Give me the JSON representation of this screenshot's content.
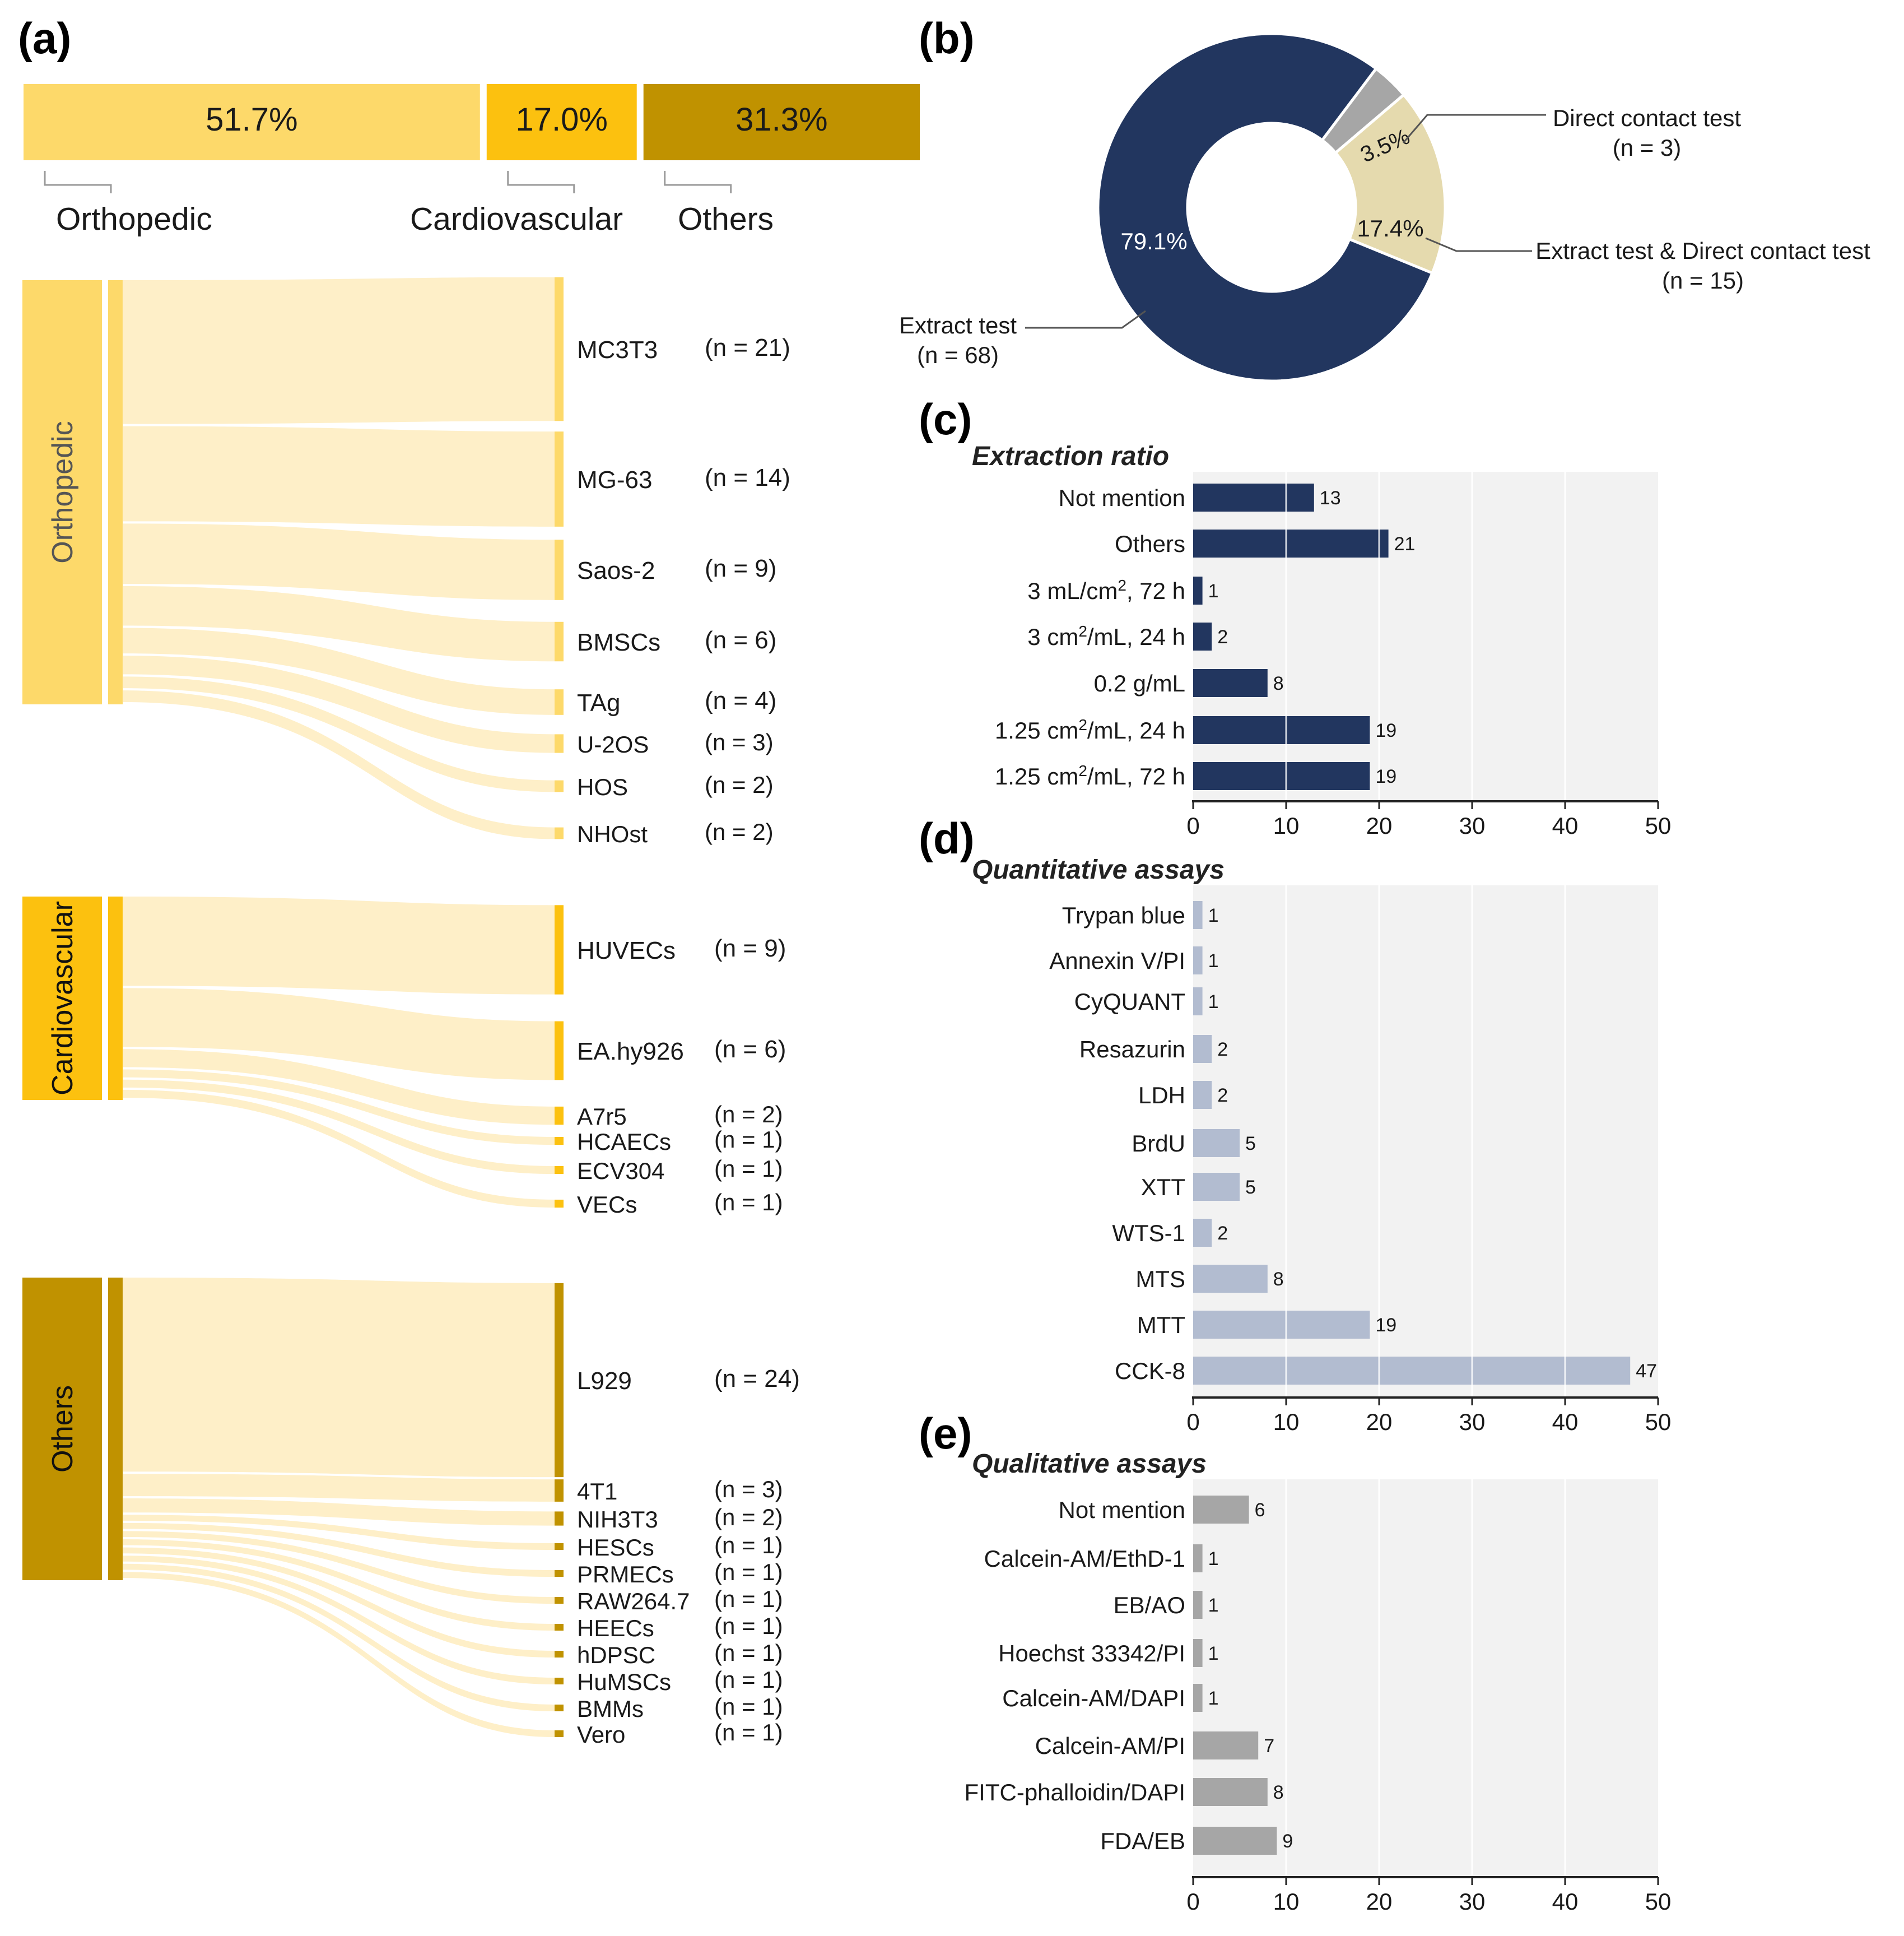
{
  "panel_labels": {
    "a": "(a)",
    "b": "(b)",
    "c": "(c)",
    "d": "(d)",
    "e": "(e)"
  },
  "colors": {
    "orthopedic": "#FDD96A",
    "cardiovascular": "#FCC10F",
    "others": "#C09200",
    "flow": "#FEEFC8",
    "navy": "#22365F",
    "gray": "#A6A6A6",
    "beige": "#E5DAAE",
    "quant": "#B2BCD0",
    "plot_bg": "#F2F2F2"
  },
  "chart_data": [
    {
      "id": "a-stacked",
      "type": "bar",
      "categories": [
        "Orthopedic",
        "Cardiovascular",
        "Others"
      ],
      "values": [
        51.7,
        17.0,
        31.3
      ],
      "labels": [
        "51.7%",
        "17.0%",
        "31.3%"
      ]
    },
    {
      "id": "a-sankey",
      "type": "sankey",
      "groups": [
        {
          "name": "Orthopedic",
          "targets": [
            {
              "label": "MC3T3",
              "n_text": "(n = 21)",
              "value": 21
            },
            {
              "label": "MG-63",
              "n_text": "(n = 14)",
              "value": 14
            },
            {
              "label": "Saos-2",
              "n_text": "(n = 9)",
              "value": 9
            },
            {
              "label": "BMSCs",
              "n_text": "(n = 6)",
              "value": 6
            },
            {
              "label": "TAg",
              "n_text": "(n = 4)",
              "value": 4
            },
            {
              "label": "U-2OS",
              "n_text": "(n = 3)",
              "value": 3
            },
            {
              "label": "HOS",
              "n_text": "(n = 2)",
              "value": 2
            },
            {
              "label": "NHOst",
              "n_text": "(n = 2)",
              "value": 2
            }
          ]
        },
        {
          "name": "Cardiovascular",
          "targets": [
            {
              "label": "HUVECs",
              "n_text": "(n = 9)",
              "value": 9
            },
            {
              "label": "EA.hy926",
              "n_text": "(n = 6)",
              "value": 6
            },
            {
              "label": "A7r5",
              "n_text": "(n = 2)",
              "value": 2
            },
            {
              "label": "HCAECs",
              "n_text": "(n = 1)",
              "value": 1
            },
            {
              "label": "ECV304",
              "n_text": "(n = 1)",
              "value": 1
            },
            {
              "label": "VECs",
              "n_text": "(n = 1)",
              "value": 1
            }
          ]
        },
        {
          "name": "Others",
          "targets": [
            {
              "label": "L929",
              "n_text": "(n = 24)",
              "value": 24
            },
            {
              "label": "4T1",
              "n_text": "(n = 3)",
              "value": 3
            },
            {
              "label": "NIH3T3",
              "n_text": "(n = 2)",
              "value": 2
            },
            {
              "label": "HESCs",
              "n_text": "(n = 1)",
              "value": 1
            },
            {
              "label": "PRMECs",
              "n_text": "(n = 1)",
              "value": 1
            },
            {
              "label": "RAW264.7",
              "n_text": "(n = 1)",
              "value": 1
            },
            {
              "label": "HEECs",
              "n_text": "(n = 1)",
              "value": 1
            },
            {
              "label": "hDPSC",
              "n_text": "(n = 1)",
              "value": 1
            },
            {
              "label": "HuMSCs",
              "n_text": "(n = 1)",
              "value": 1
            },
            {
              "label": "BMMs",
              "n_text": "(n = 1)",
              "value": 1
            },
            {
              "label": "Vero",
              "n_text": "(n = 1)",
              "value": 1
            }
          ]
        }
      ]
    },
    {
      "id": "b-donut",
      "type": "pie",
      "slices": [
        {
          "name": "Extract test",
          "n_text": "(n = 68)",
          "value": 79.1,
          "label": "79.1%"
        },
        {
          "name": "Direct contact test",
          "n_text": "(n = 3)",
          "value": 3.5,
          "label": "3.5%"
        },
        {
          "name": "Extract test & Direct contact test",
          "n_text": "(n = 15)",
          "value": 17.4,
          "label": "17.4%"
        }
      ]
    },
    {
      "id": "c-extraction",
      "type": "bar",
      "orientation": "horizontal",
      "title": "Extraction ratio",
      "categories": [
        {
          "pre": "Not mention"
        },
        {
          "pre": "Others"
        },
        {
          "pre": "3 mL/cm",
          "sup": "2",
          "post": ", 72 h"
        },
        {
          "pre": "3 cm",
          "sup": "2",
          "post": "/mL, 24 h"
        },
        {
          "pre": "0.2 g/mL"
        },
        {
          "pre": "1.25 cm",
          "sup": "2",
          "post": "/mL, 24 h"
        },
        {
          "pre": "1.25 cm",
          "sup": "2",
          "post": "/mL, 72 h"
        }
      ],
      "values": [
        13,
        21,
        1,
        2,
        8,
        19,
        19
      ],
      "xlim": [
        0,
        50
      ],
      "xticks": [
        0,
        10,
        20,
        30,
        40,
        50
      ],
      "grid": true
    },
    {
      "id": "d-quantitative",
      "type": "bar",
      "orientation": "horizontal",
      "title": "Quantitative assays",
      "categories": [
        {
          "pre": "Trypan blue"
        },
        {
          "pre": "Annexin V/PI"
        },
        {
          "pre": "CyQUANT"
        },
        {
          "pre": "Resazurin"
        },
        {
          "pre": "LDH"
        },
        {
          "pre": "BrdU"
        },
        {
          "pre": "XTT"
        },
        {
          "pre": "WTS-1"
        },
        {
          "pre": "MTS"
        },
        {
          "pre": "MTT"
        },
        {
          "pre": "CCK-8"
        }
      ],
      "values": [
        1,
        1,
        1,
        2,
        2,
        5,
        5,
        2,
        8,
        19,
        47
      ],
      "xlim": [
        0,
        50
      ],
      "xticks": [
        0,
        10,
        20,
        30,
        40,
        50
      ],
      "grid": true
    },
    {
      "id": "e-qualitative",
      "type": "bar",
      "orientation": "horizontal",
      "title": "Qualitative assays",
      "categories": [
        {
          "pre": "Not mention"
        },
        {
          "pre": "Calcein-AM/EthD-1"
        },
        {
          "pre": "EB/AO"
        },
        {
          "pre": "Hoechst 33342/PI"
        },
        {
          "pre": "Calcein-AM/DAPI"
        },
        {
          "pre": "Calcein-AM/PI"
        },
        {
          "pre": "FITC-phalloidin/DAPI"
        },
        {
          "pre": "FDA/EB"
        }
      ],
      "values": [
        6,
        1,
        1,
        1,
        1,
        7,
        8,
        9
      ],
      "xlim": [
        0,
        50
      ],
      "xticks": [
        0,
        10,
        20,
        30,
        40,
        50
      ],
      "grid": true
    }
  ]
}
